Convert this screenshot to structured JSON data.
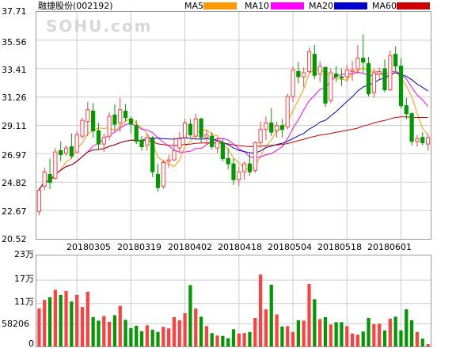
{
  "chart_data": {
    "type": "candlestick",
    "title": "融捷股份(002192)",
    "watermark": "SOHU.com",
    "legend": [
      {
        "label": "MA5",
        "color": "#ff9900"
      },
      {
        "label": "MA10",
        "color": "#ff00ff"
      },
      {
        "label": "MA20",
        "color": "#0000cc"
      },
      {
        "label": "MA60",
        "color": "#cc0000"
      }
    ],
    "colors": {
      "up": "#ff4040",
      "down": "#009900",
      "grid": "#cccccc",
      "frame": "#999999"
    },
    "price_axis": {
      "ticks": [
        "37.71",
        "35.56",
        "33.41",
        "31.26",
        "29.11",
        "26.97",
        "24.82",
        "22.67",
        "20.52"
      ],
      "ylim": [
        20.52,
        37.71
      ]
    },
    "volume_axis": {
      "ticks": [
        "23万",
        "17万",
        "11万",
        "58206",
        "0"
      ],
      "max": 233000
    },
    "date_labels": [
      {
        "index": 7,
        "label": "20180305"
      },
      {
        "index": 17,
        "label": "20180319"
      },
      {
        "index": 27,
        "label": "20180402"
      },
      {
        "index": 37,
        "label": "20180418"
      },
      {
        "index": 47,
        "label": "20180504"
      },
      {
        "index": 57,
        "label": "20180518"
      },
      {
        "index": 67,
        "label": "20180601"
      }
    ],
    "ohlc": [
      [
        22.6,
        24.4,
        22.3,
        24.2
      ],
      [
        24.5,
        25.9,
        24.2,
        25.6
      ],
      [
        25.4,
        26.6,
        24.3,
        24.8
      ],
      [
        25.1,
        27.4,
        25.0,
        27.1
      ],
      [
        27.2,
        27.9,
        26.4,
        26.9
      ],
      [
        27.0,
        27.6,
        26.8,
        27.4
      ],
      [
        27.5,
        28.5,
        26.6,
        26.8
      ],
      [
        27.1,
        28.7,
        27.0,
        28.4
      ],
      [
        28.3,
        29.7,
        28.1,
        29.5
      ],
      [
        29.4,
        30.9,
        28.3,
        30.3
      ],
      [
        30.2,
        30.8,
        28.2,
        28.7
      ],
      [
        28.7,
        29.3,
        27.3,
        27.7
      ],
      [
        27.7,
        28.5,
        27.1,
        28.2
      ],
      [
        28.3,
        30.1,
        28.0,
        29.8
      ],
      [
        29.9,
        30.7,
        28.7,
        29.2
      ],
      [
        29.3,
        31.2,
        28.6,
        30.3
      ],
      [
        30.2,
        30.7,
        29.4,
        29.7
      ],
      [
        29.6,
        29.8,
        28.5,
        29.2
      ],
      [
        29.1,
        29.5,
        27.7,
        27.9
      ],
      [
        28.0,
        28.3,
        27.2,
        27.5
      ],
      [
        27.6,
        28.5,
        27.2,
        28.2
      ],
      [
        28.1,
        28.3,
        25.2,
        25.6
      ],
      [
        25.4,
        26.2,
        24.1,
        24.4
      ],
      [
        24.5,
        26.5,
        24.3,
        26.3
      ],
      [
        26.4,
        26.9,
        25.9,
        26.5
      ],
      [
        26.5,
        28.2,
        26.4,
        27.2
      ],
      [
        27.4,
        28.6,
        27.0,
        28.1
      ],
      [
        28.2,
        29.6,
        27.7,
        29.3
      ],
      [
        29.2,
        29.6,
        28.2,
        28.4
      ],
      [
        28.3,
        30.0,
        28.0,
        29.6
      ],
      [
        29.6,
        29.7,
        27.8,
        28.2
      ],
      [
        28.2,
        28.8,
        27.6,
        28.4
      ],
      [
        28.3,
        28.6,
        27.3,
        27.5
      ],
      [
        27.4,
        28.2,
        27.0,
        27.9
      ],
      [
        27.8,
        28.1,
        26.4,
        26.6
      ],
      [
        26.6,
        27.4,
        25.8,
        26.2
      ],
      [
        26.2,
        26.6,
        24.6,
        25.0
      ],
      [
        25.0,
        26.0,
        24.5,
        25.6
      ],
      [
        25.6,
        26.4,
        25.0,
        26.2
      ],
      [
        26.2,
        27.0,
        25.3,
        25.6
      ],
      [
        25.7,
        27.9,
        25.5,
        27.8
      ],
      [
        27.8,
        29.4,
        27.4,
        28.8
      ],
      [
        28.8,
        29.8,
        28.0,
        29.3
      ],
      [
        29.3,
        30.4,
        28.3,
        28.6
      ],
      [
        28.7,
        29.4,
        28.2,
        29.1
      ],
      [
        29.1,
        29.6,
        28.2,
        28.8
      ],
      [
        29.0,
        31.5,
        28.8,
        31.3
      ],
      [
        31.3,
        33.6,
        30.9,
        33.3
      ],
      [
        33.2,
        33.9,
        32.3,
        32.8
      ],
      [
        32.8,
        33.5,
        32.0,
        33.1
      ],
      [
        33.2,
        35.0,
        33.0,
        34.7
      ],
      [
        34.5,
        35.2,
        32.6,
        32.9
      ],
      [
        33.0,
        34.0,
        32.4,
        33.6
      ],
      [
        33.5,
        33.6,
        30.5,
        30.8
      ],
      [
        31.0,
        33.4,
        30.8,
        33.1
      ],
      [
        33.0,
        33.6,
        32.4,
        32.8
      ],
      [
        32.8,
        33.4,
        32.1,
        32.7
      ],
      [
        32.8,
        33.7,
        32.4,
        33.3
      ],
      [
        33.2,
        34.0,
        32.5,
        33.3
      ],
      [
        33.4,
        35.2,
        33.0,
        34.2
      ],
      [
        34.2,
        36.0,
        33.1,
        33.9
      ],
      [
        33.8,
        34.3,
        31.3,
        31.5
      ],
      [
        31.6,
        33.4,
        31.2,
        33.1
      ],
      [
        33.0,
        33.5,
        32.6,
        33.2
      ],
      [
        33.4,
        34.1,
        31.6,
        31.8
      ],
      [
        31.8,
        34.8,
        31.7,
        34.4
      ],
      [
        34.5,
        35.1,
        33.2,
        33.6
      ],
      [
        33.6,
        34.2,
        30.4,
        30.6
      ],
      [
        30.6,
        31.2,
        29.6,
        30.0
      ],
      [
        30.0,
        30.1,
        27.6,
        27.9
      ],
      [
        27.9,
        28.4,
        27.5,
        28.1
      ],
      [
        28.2,
        28.6,
        27.6,
        27.8
      ],
      [
        27.7,
        28.5,
        27.2,
        28.2
      ]
    ],
    "volume": [
      97000,
      119000,
      126000,
      145000,
      132000,
      142000,
      115000,
      132000,
      101000,
      140000,
      75000,
      66000,
      78000,
      63000,
      80000,
      104000,
      68000,
      47000,
      53000,
      39000,
      54000,
      43000,
      37000,
      50000,
      46000,
      75000,
      67000,
      85000,
      157000,
      97000,
      76000,
      52000,
      34000,
      28000,
      27000,
      21000,
      44000,
      33000,
      34000,
      37000,
      73000,
      184000,
      95000,
      158000,
      82000,
      51000,
      52000,
      37000,
      67000,
      66000,
      160000,
      121000,
      70000,
      75000,
      56000,
      62000,
      62000,
      52000,
      33000,
      30000,
      38000,
      73000,
      57000,
      58000,
      41000,
      71000,
      76000,
      41000,
      95000,
      67000,
      37000,
      20000,
      6000
    ]
  }
}
